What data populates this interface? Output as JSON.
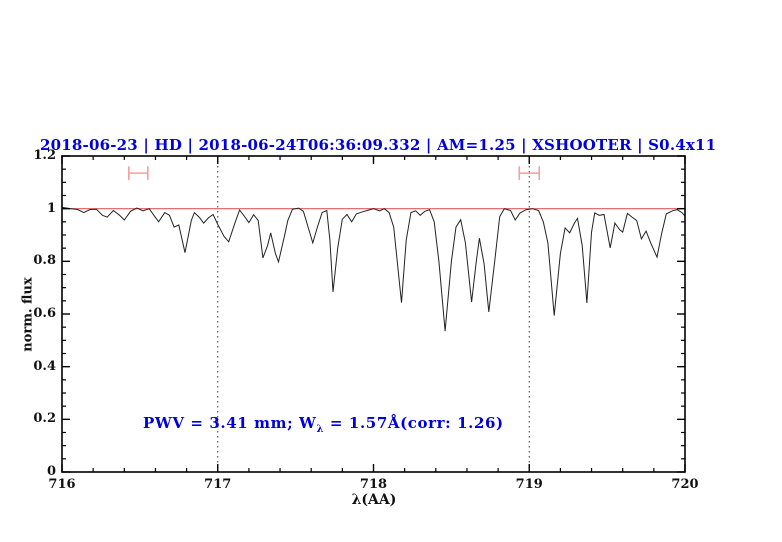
{
  "window": {
    "background": "#ffffff"
  },
  "colors": {
    "title_blue": "#0000dd",
    "annotation_blue": "#0000dd",
    "spectrum_line": "#222222",
    "reference_red": "#e05c5c",
    "marker_pink": "#f49f9f",
    "axis_black": "#000000",
    "dotted_gridline": "#333333"
  },
  "chart_data": {
    "type": "line",
    "title": "2018-06-23 | HD | 2018-06-24T06:36:09.332 | AM=1.25 | XSHOOTER | S0.4x11",
    "xlabel": "λ(AA)",
    "ylabel": "norm. flux",
    "xlim": [
      716,
      720
    ],
    "ylim": [
      0,
      1.2
    ],
    "grid": "off",
    "x_ticks": [
      {
        "v": 716,
        "label": "716"
      },
      {
        "v": 717,
        "label": "717"
      },
      {
        "v": 718,
        "label": "718"
      },
      {
        "v": 719,
        "label": "719"
      },
      {
        "v": 720,
        "label": "720"
      }
    ],
    "x_minor_step": 0.2,
    "y_ticks": [
      {
        "v": 0,
        "label": "0"
      },
      {
        "v": 0.2,
        "label": "0.2"
      },
      {
        "v": 0.4,
        "label": "0.4"
      },
      {
        "v": 0.6,
        "label": "0.6"
      },
      {
        "v": 0.8,
        "label": "0.8"
      },
      {
        "v": 1,
        "label": "1"
      },
      {
        "v": 1.2,
        "label": "1.2"
      }
    ],
    "y_minor_step": 0.05,
    "dotted_vlines": [
      717,
      719
    ],
    "reference_hline": {
      "y": 1.0
    },
    "range_markers": [
      {
        "x": 716.49,
        "xerr": 0.061,
        "y": 1.135,
        "cap": 0.026
      },
      {
        "x": 719.0,
        "xerr": 0.064,
        "y": 1.135,
        "cap": 0.026
      }
    ],
    "annotation": {
      "full": "PWV = 3.41 mm; W_λ = 1.57Å(corr: 1.26)",
      "part1": "PWV  =  3.41  mm;  W",
      "sub": "λ",
      "part2": "  =  1.57Å(corr:  1.26)"
    },
    "series": [
      {
        "name": "normalized-spectrum",
        "points": [
          [
            716.0,
            1.005
          ],
          [
            716.06,
            1.0
          ],
          [
            716.1,
            0.997
          ],
          [
            716.14,
            0.985
          ],
          [
            716.18,
            0.997
          ],
          [
            716.22,
            0.998
          ],
          [
            716.26,
            0.975
          ],
          [
            716.29,
            0.968
          ],
          [
            716.33,
            0.993
          ],
          [
            716.37,
            0.975
          ],
          [
            716.4,
            0.957
          ],
          [
            716.44,
            0.99
          ],
          [
            716.48,
            1.002
          ],
          [
            716.52,
            0.992
          ],
          [
            716.56,
            1.0
          ],
          [
            716.59,
            0.975
          ],
          [
            716.62,
            0.95
          ],
          [
            716.66,
            0.985
          ],
          [
            716.69,
            0.975
          ],
          [
            716.72,
            0.93
          ],
          [
            716.75,
            0.938
          ],
          [
            716.79,
            0.833
          ],
          [
            716.83,
            0.955
          ],
          [
            716.85,
            0.985
          ],
          [
            716.88,
            0.968
          ],
          [
            716.91,
            0.945
          ],
          [
            716.94,
            0.965
          ],
          [
            716.97,
            0.978
          ],
          [
            717.0,
            0.94
          ],
          [
            717.04,
            0.895
          ],
          [
            717.07,
            0.874
          ],
          [
            717.11,
            0.945
          ],
          [
            717.14,
            0.995
          ],
          [
            717.17,
            0.972
          ],
          [
            717.2,
            0.947
          ],
          [
            717.23,
            0.977
          ],
          [
            717.26,
            0.955
          ],
          [
            717.29,
            0.813
          ],
          [
            717.32,
            0.86
          ],
          [
            717.34,
            0.908
          ],
          [
            717.37,
            0.83
          ],
          [
            717.39,
            0.798
          ],
          [
            717.43,
            0.9
          ],
          [
            717.45,
            0.955
          ],
          [
            717.48,
            0.998
          ],
          [
            717.52,
            1.002
          ],
          [
            717.55,
            0.99
          ],
          [
            717.58,
            0.93
          ],
          [
            717.61,
            0.87
          ],
          [
            717.64,
            0.93
          ],
          [
            717.67,
            0.985
          ],
          [
            717.7,
            0.993
          ],
          [
            717.72,
            0.88
          ],
          [
            717.74,
            0.684
          ],
          [
            717.77,
            0.85
          ],
          [
            717.8,
            0.96
          ],
          [
            717.83,
            0.978
          ],
          [
            717.86,
            0.95
          ],
          [
            717.89,
            0.98
          ],
          [
            717.93,
            0.988
          ],
          [
            717.97,
            0.995
          ],
          [
            718.0,
            1.0
          ],
          [
            718.04,
            0.992
          ],
          [
            718.07,
            1.0
          ],
          [
            718.1,
            0.985
          ],
          [
            718.13,
            0.93
          ],
          [
            718.18,
            0.643
          ],
          [
            718.21,
            0.88
          ],
          [
            718.24,
            0.985
          ],
          [
            718.27,
            0.992
          ],
          [
            718.3,
            0.975
          ],
          [
            718.33,
            0.99
          ],
          [
            718.36,
            0.996
          ],
          [
            718.39,
            0.95
          ],
          [
            718.42,
            0.8
          ],
          [
            718.46,
            0.535
          ],
          [
            718.5,
            0.8
          ],
          [
            718.53,
            0.93
          ],
          [
            718.56,
            0.958
          ],
          [
            718.59,
            0.87
          ],
          [
            718.63,
            0.645
          ],
          [
            718.66,
            0.8
          ],
          [
            718.68,
            0.888
          ],
          [
            718.71,
            0.79
          ],
          [
            718.74,
            0.608
          ],
          [
            718.78,
            0.81
          ],
          [
            718.81,
            0.97
          ],
          [
            718.84,
            1.0
          ],
          [
            718.88,
            0.993
          ],
          [
            718.91,
            0.957
          ],
          [
            718.94,
            0.983
          ],
          [
            718.98,
            0.996
          ],
          [
            719.02,
            1.0
          ],
          [
            719.06,
            0.993
          ],
          [
            719.09,
            0.95
          ],
          [
            719.12,
            0.87
          ],
          [
            719.16,
            0.594
          ],
          [
            719.2,
            0.83
          ],
          [
            719.23,
            0.927
          ],
          [
            719.26,
            0.908
          ],
          [
            719.29,
            0.945
          ],
          [
            719.31,
            0.963
          ],
          [
            719.34,
            0.86
          ],
          [
            719.37,
            0.642
          ],
          [
            719.4,
            0.91
          ],
          [
            719.42,
            0.984
          ],
          [
            719.45,
            0.975
          ],
          [
            719.48,
            0.978
          ],
          [
            719.52,
            0.851
          ],
          [
            719.55,
            0.945
          ],
          [
            719.58,
            0.92
          ],
          [
            719.6,
            0.911
          ],
          [
            719.63,
            0.982
          ],
          [
            719.66,
            0.968
          ],
          [
            719.69,
            0.955
          ],
          [
            719.72,
            0.885
          ],
          [
            719.75,
            0.915
          ],
          [
            719.78,
            0.87
          ],
          [
            719.82,
            0.816
          ],
          [
            719.85,
            0.905
          ],
          [
            719.88,
            0.98
          ],
          [
            719.92,
            0.992
          ],
          [
            719.95,
            0.996
          ],
          [
            719.98,
            0.985
          ],
          [
            720.0,
            0.972
          ]
        ]
      }
    ]
  }
}
